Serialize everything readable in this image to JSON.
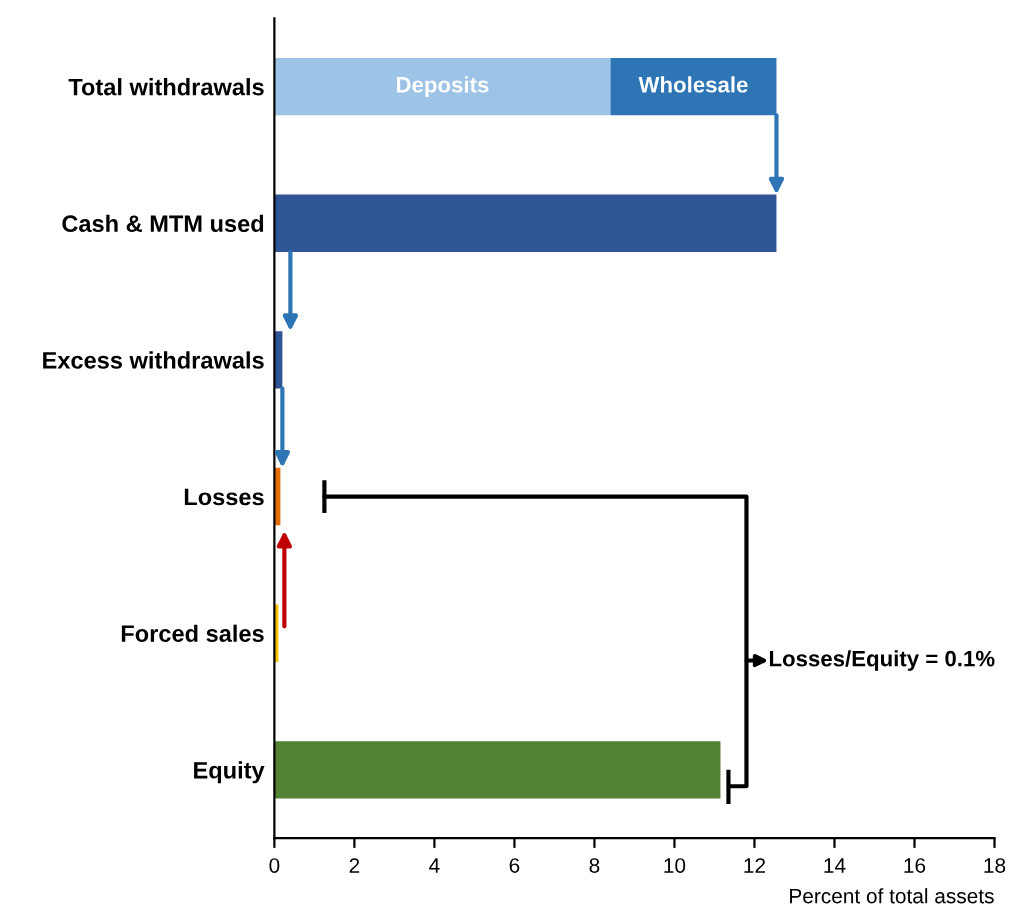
{
  "chart_data": {
    "type": "bar",
    "orientation": "horizontal",
    "stacked": true,
    "categories": [
      "Total withdrawals",
      "Cash & MTM used",
      "Excess withdrawals",
      "Losses",
      "Forced sales",
      "Equity"
    ],
    "series": [
      {
        "name": "Deposits",
        "color": "#9dc3e6",
        "values": [
          8.4,
          null,
          null,
          null,
          null,
          null
        ]
      },
      {
        "name": "Wholesale",
        "color": "#2e75b6",
        "values": [
          4.15,
          null,
          null,
          null,
          null,
          null
        ]
      },
      {
        "colors": [
          "#2f5597",
          "#2f5597",
          "#2f5597",
          "#e46c0a",
          "#ffc000",
          "#548235"
        ],
        "values": [
          null,
          12.55,
          0.2,
          0.15,
          0.1,
          11.15
        ]
      }
    ],
    "xlim": [
      0,
      18
    ],
    "xticks": [
      0,
      2,
      4,
      6,
      8,
      10,
      12,
      14,
      16,
      18
    ],
    "xlabel": "Percent of total assets",
    "annotations": [
      "Losses/Equity = 0.1%"
    ],
    "grid": false,
    "legend": false
  }
}
